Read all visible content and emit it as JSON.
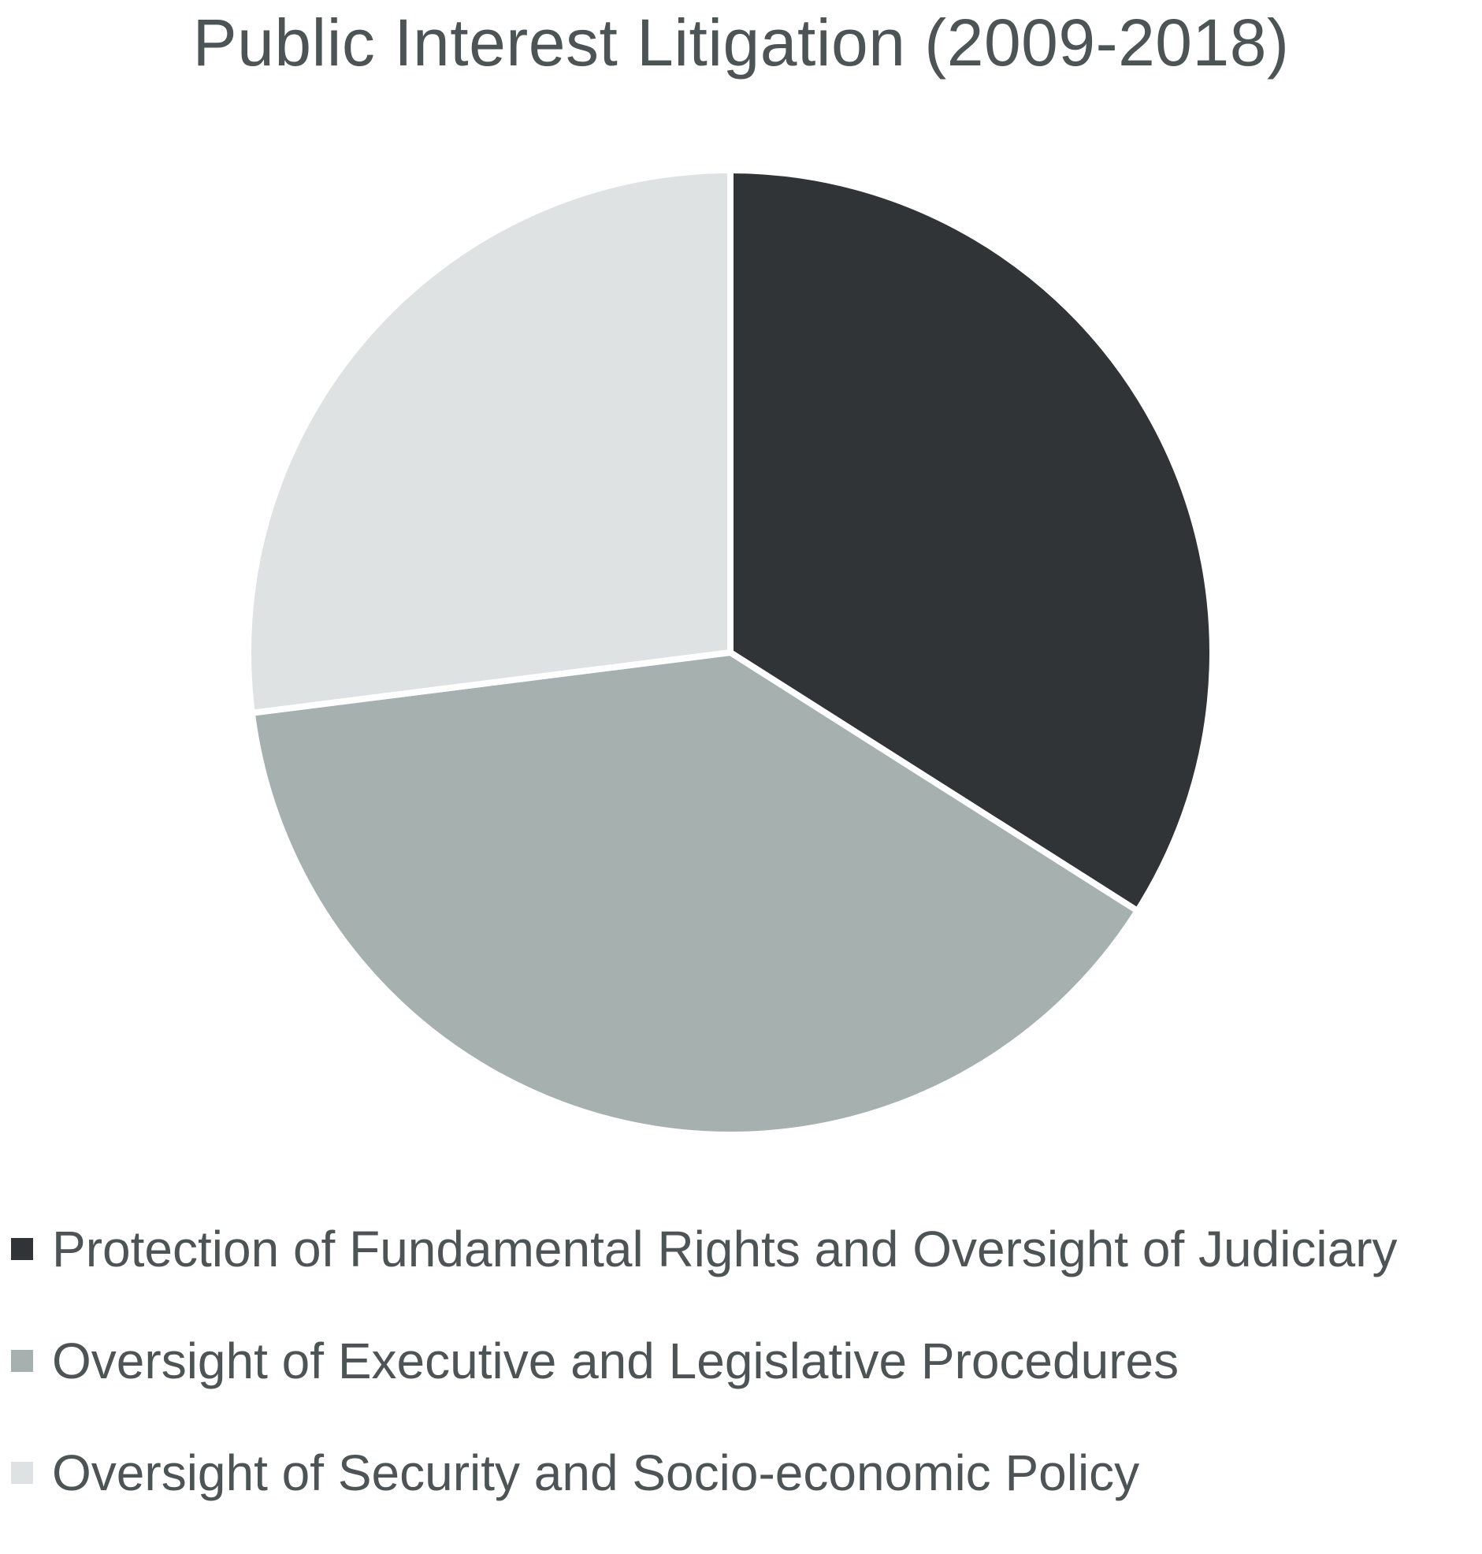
{
  "chart_data": {
    "type": "pie",
    "title": "Public Interest Litigation (2009-2018)",
    "start_angle_deg": 0,
    "direction": "clockwise",
    "slices": [
      {
        "label": "Protection of Fundamental Rights and Oversight of Judiciary",
        "value": 34,
        "color": "#303436"
      },
      {
        "label": "Oversight of Executive and Legislative Procedures",
        "value": 39,
        "color": "#a5b0af"
      },
      {
        "label": "Oversight of Security and Socio-economic Policy",
        "value": 27,
        "color": "#dee2e2"
      }
    ],
    "separator_color": "#ffffff",
    "legend_position": "bottom"
  }
}
